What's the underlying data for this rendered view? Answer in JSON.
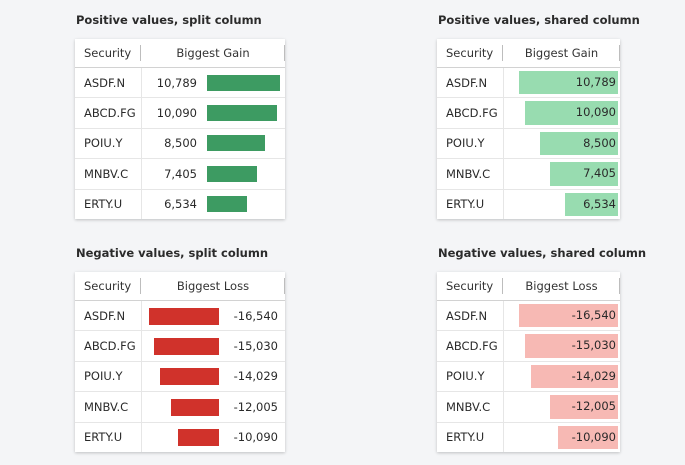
{
  "panels": {
    "pos_split": {
      "title": "Positive values, split column",
      "headers": [
        "Security",
        "Biggest Gain"
      ],
      "rows": [
        {
          "security": "ASDF.N",
          "value": "10,789",
          "fraction": 1.0
        },
        {
          "security": "ABCD.FG",
          "value": "10,090",
          "fraction": 0.955
        },
        {
          "security": "POIU.Y",
          "value": "8,500",
          "fraction": 0.79
        },
        {
          "security": "MNBV.C",
          "value": "7,405",
          "fraction": 0.69
        },
        {
          "security": "ERTY.U",
          "value": "6,534",
          "fraction": 0.55
        }
      ]
    },
    "pos_shared": {
      "title": "Positive values, shared column",
      "headers": [
        "Security",
        "Biggest Gain"
      ],
      "rows": [
        {
          "security": "ASDF.N",
          "value": "10,789",
          "fraction": 1.0
        },
        {
          "security": "ABCD.FG",
          "value": "10,090",
          "fraction": 0.937
        },
        {
          "security": "POIU.Y",
          "value": "8,500",
          "fraction": 0.79
        },
        {
          "security": "MNBV.C",
          "value": "7,405",
          "fraction": 0.688
        },
        {
          "security": "ERTY.U",
          "value": "6,534",
          "fraction": 0.535
        }
      ]
    },
    "neg_split": {
      "title": "Negative values, split column",
      "headers": [
        "Security",
        "Biggest Loss"
      ],
      "rows": [
        {
          "security": "ASDF.N",
          "value": "-16,540",
          "fraction": 1.0
        },
        {
          "security": "ABCD.FG",
          "value": "-15,030",
          "fraction": 0.93
        },
        {
          "security": "POIU.Y",
          "value": "-14,029",
          "fraction": 0.84
        },
        {
          "security": "MNBV.C",
          "value": "-12,005",
          "fraction": 0.68
        },
        {
          "security": "ERTY.U",
          "value": "-10,090",
          "fraction": 0.59
        }
      ]
    },
    "neg_shared": {
      "title": "Negative values, shared column",
      "headers": [
        "Security",
        "Biggest Loss"
      ],
      "rows": [
        {
          "security": "ASDF.N",
          "value": "-16,540",
          "fraction": 1.0
        },
        {
          "security": "ABCD.FG",
          "value": "-15,030",
          "fraction": 0.94
        },
        {
          "security": "POIU.Y",
          "value": "-14,029",
          "fraction": 0.88
        },
        {
          "security": "MNBV.C",
          "value": "-12,005",
          "fraction": 0.69
        },
        {
          "security": "ERTY.U",
          "value": "-10,090",
          "fraction": 0.61
        }
      ]
    }
  },
  "colors": {
    "gain_bar": "#3d9b62",
    "loss_bar": "#d0322b",
    "gain_bar_light": "#98dcb0",
    "loss_bar_light": "#f7b9b4"
  }
}
